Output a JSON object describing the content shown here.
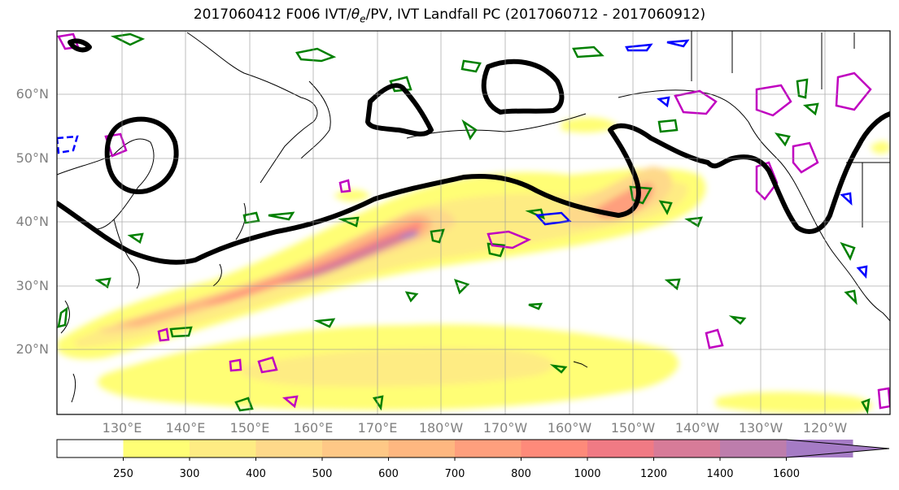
{
  "title": {
    "prefix": "2017060412 F006 IVT/",
    "theta": "θ",
    "theta_sub": "e",
    "suffix": "/PV, IVT Landfall PC (2017060712 - 2017060912)"
  },
  "map": {
    "lat_labels": [
      "60°N",
      "50°N",
      "40°N",
      "30°N",
      "20°N"
    ],
    "lon_labels": [
      "130°E",
      "140°E",
      "150°E",
      "160°E",
      "170°E",
      "180°W",
      "170°W",
      "160°W",
      "150°W",
      "140°W",
      "130°W",
      "120°W"
    ]
  },
  "colorbar": {
    "labels": [
      "250",
      "300",
      "400",
      "500",
      "600",
      "700",
      "800",
      "1000",
      "1200",
      "1400",
      "1600"
    ],
    "colors": [
      "#ffffff",
      "#fffe75",
      "#feec83",
      "#fed98a",
      "#fec886",
      "#feb780",
      "#fe9f7d",
      "#fe8a7a",
      "#f07a84",
      "#d77b98",
      "#bd7dac",
      "#a57bc5"
    ],
    "extend": "max"
  },
  "legend_colors": {
    "ivt_contour": "#000000",
    "theta_e": "#008000",
    "pv_high": "#c000c0",
    "pv_low": "#0000ff"
  }
}
